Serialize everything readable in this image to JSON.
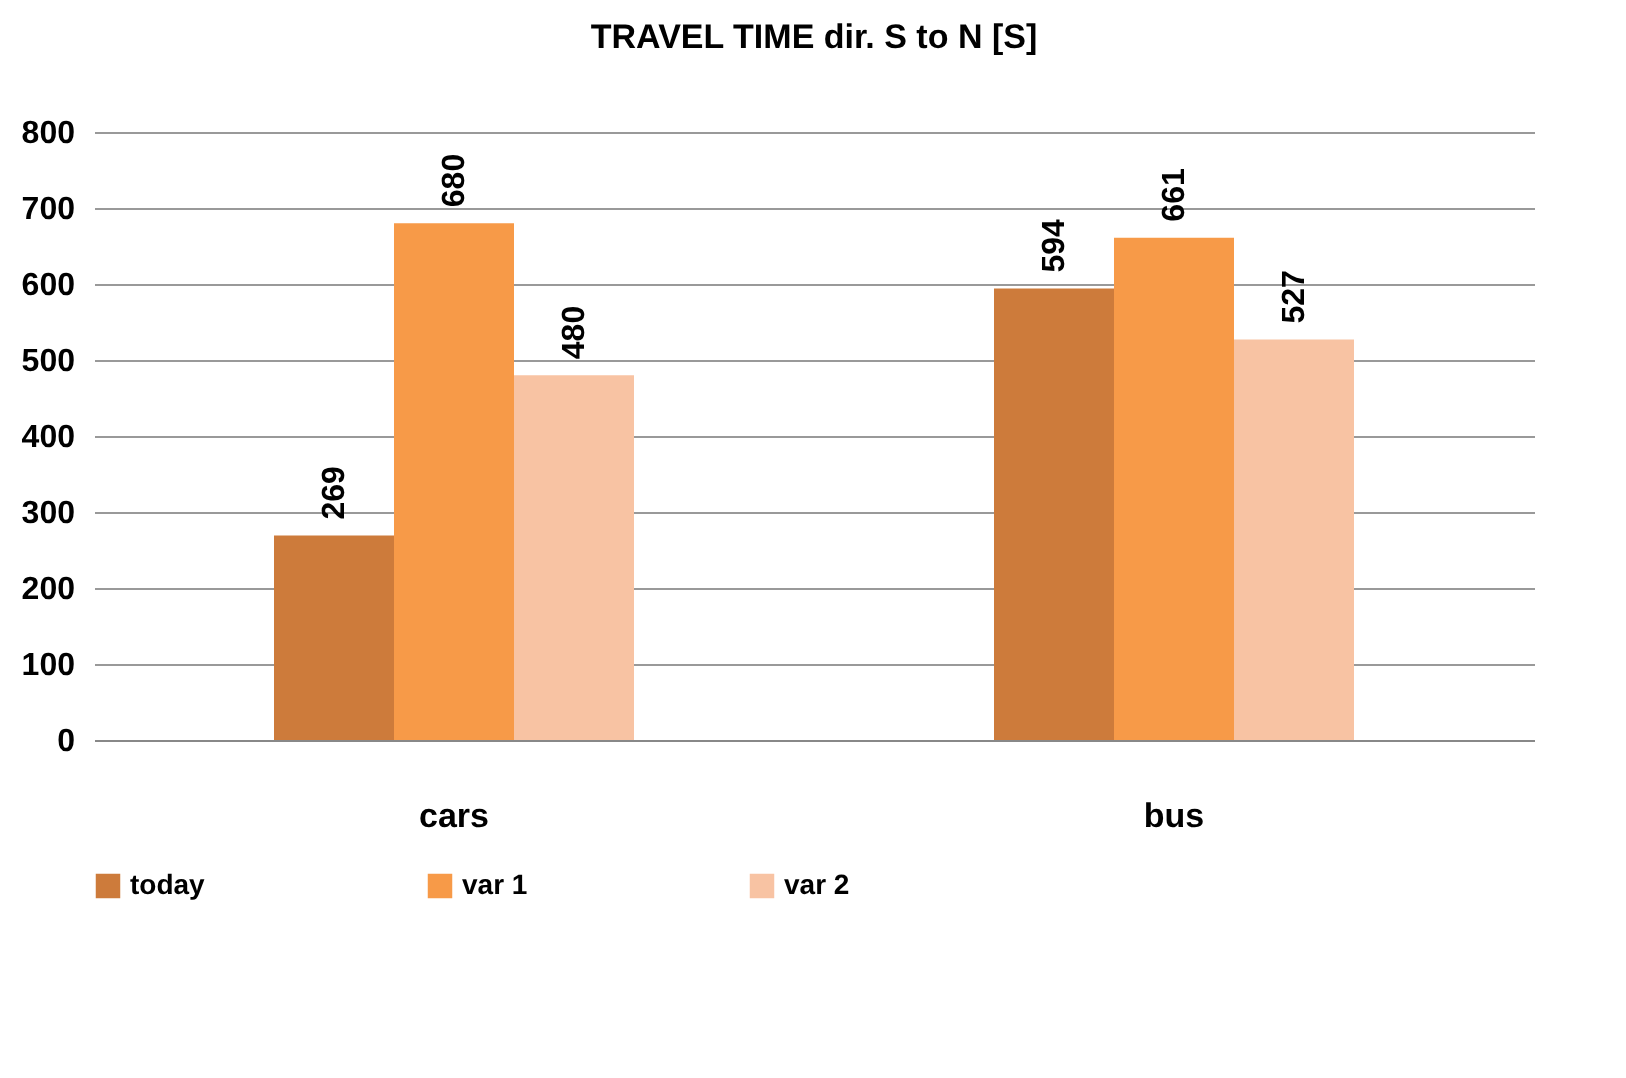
{
  "chart_data": {
    "type": "bar",
    "title": "TRAVEL TIME dir. S to N [S]",
    "categories": [
      "cars",
      "bus"
    ],
    "series": [
      {
        "name": "today",
        "color": "#cd7b3b",
        "values": [
          269,
          594
        ]
      },
      {
        "name": "var 1",
        "color": "#f79a48",
        "values": [
          680,
          661
        ]
      },
      {
        "name": "var 2",
        "color": "#f8c3a3",
        "values": [
          480,
          527
        ]
      }
    ],
    "ylim": [
      0,
      800
    ],
    "yticks": [
      0,
      100,
      200,
      300,
      400,
      500,
      600,
      700,
      800
    ],
    "grid": "y",
    "legend": "bottom",
    "data_labels": true
  }
}
